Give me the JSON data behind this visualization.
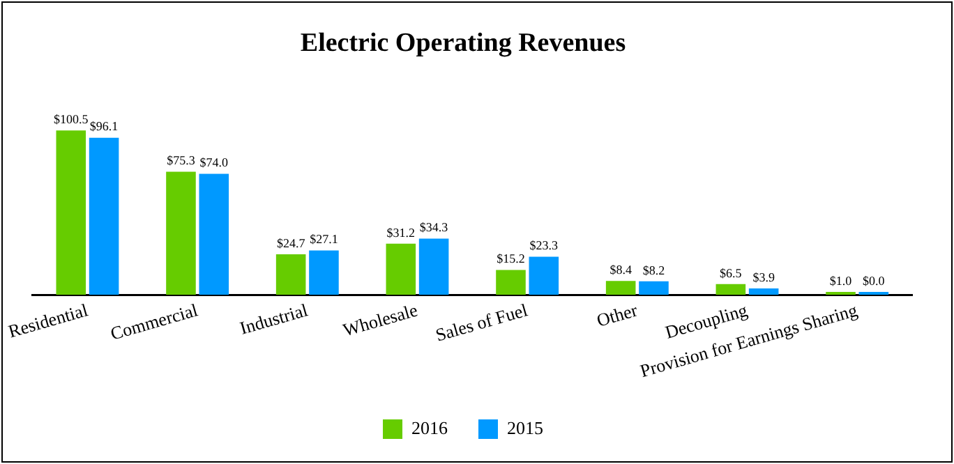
{
  "chart_data": {
    "type": "bar",
    "title": "Electric Operating Revenues",
    "categories": [
      "Residential",
      "Commercial",
      "Industrial",
      "Wholesale",
      "Sales of Fuel",
      "Other",
      "Decoupling",
      "Provision for Earnings Sharing"
    ],
    "series": [
      {
        "name": "2016",
        "color": "#66cc00",
        "values": [
          100.5,
          75.3,
          24.7,
          31.2,
          15.2,
          8.4,
          6.5,
          1.0
        ],
        "value_labels": [
          "$100.5",
          "$75.3",
          "$24.7",
          "$31.2",
          "$15.2",
          "$8.4",
          "$6.5",
          "$1.0"
        ]
      },
      {
        "name": "2015",
        "color": "#0099ff",
        "values": [
          96.1,
          74.0,
          27.1,
          34.3,
          23.3,
          8.2,
          3.9,
          0.0
        ],
        "value_labels": [
          "$96.1",
          "$74.0",
          "$27.1",
          "$34.3",
          "$23.3",
          "$8.2",
          "$3.9",
          "$0.0"
        ]
      }
    ],
    "legend": "bottom",
    "grid": false
  }
}
